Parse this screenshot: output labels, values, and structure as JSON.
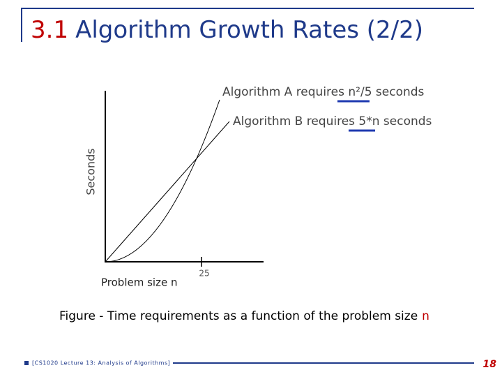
{
  "header": {
    "number": "3.1",
    "title": "Algorithm Growth Rates (2/2)"
  },
  "figure": {
    "label_a": "Algorithm A requires n²/5 seconds",
    "label_b": "Algorithm B requires 5*n seconds",
    "y_label": "Seconds",
    "x_label": "Problem size  n",
    "x_tick": "25"
  },
  "caption": {
    "text": "Figure - Time requirements as a function of the problem size",
    "variable": "n"
  },
  "footer": {
    "course": "[CS1020 Lecture 13: Analysis of Algorithms]",
    "page": "18"
  }
}
